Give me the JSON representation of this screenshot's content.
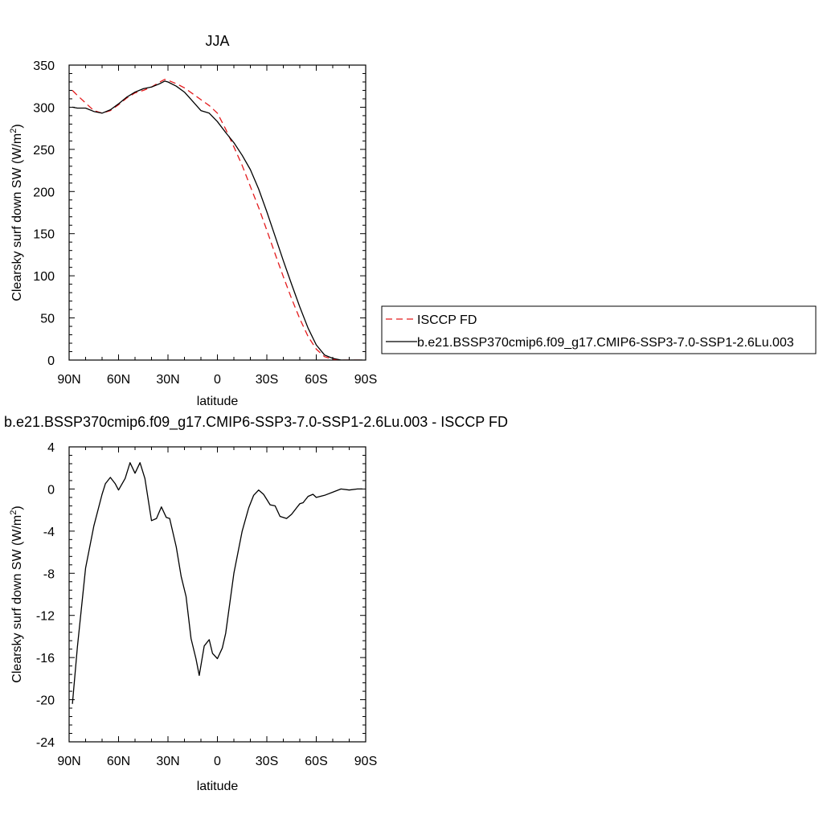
{
  "chart_data": [
    {
      "type": "line",
      "title": "JJA",
      "xlabel": "latitude",
      "ylabel": "Clearsky surf down SW (W/m",
      "ylabel_sup": "2",
      "ylabel_close": ")",
      "xlim": [
        90,
        -90
      ],
      "ylim": [
        0,
        350
      ],
      "x_ticks": [
        90,
        60,
        30,
        0,
        -30,
        -60,
        -90
      ],
      "x_tick_labels": [
        "90N",
        "60N",
        "30N",
        "0",
        "30S",
        "60S",
        "90S"
      ],
      "y_ticks": [
        0,
        50,
        100,
        150,
        200,
        250,
        300,
        350
      ],
      "y_tick_labels": [
        "0",
        "50",
        "100",
        "150",
        "200",
        "250",
        "300",
        "350"
      ],
      "legend_position": "right",
      "series": [
        {
          "name": "ISCCP FD",
          "color": "#e41a1c",
          "dash": "dashed",
          "x": [
            88,
            85,
            80,
            75,
            70,
            65,
            60,
            55,
            50,
            45,
            40,
            35,
            32,
            30,
            25,
            20,
            15,
            10,
            5,
            0,
            -5,
            -10,
            -15,
            -20,
            -25,
            -30,
            -35,
            -40,
            -45,
            -50,
            -55,
            -60,
            -65,
            -70,
            -75,
            -80,
            -85,
            -88
          ],
          "y": [
            320,
            314,
            305,
            296,
            293,
            296,
            303,
            311,
            317,
            320,
            324,
            330,
            333,
            332,
            328,
            323,
            316,
            309,
            302,
            293,
            274,
            253,
            231,
            206,
            181,
            154,
            126,
            99,
            73,
            49,
            28,
            13,
            4,
            1,
            0,
            0,
            0,
            0
          ]
        },
        {
          "name": "b.e21.BSSP370cmip6.f09_g17.CMIP6-SSP3-7.0-SSP1-2.6Lu.003",
          "color": "#000000",
          "dash": "solid",
          "x": [
            88,
            85,
            80,
            75,
            70,
            65,
            60,
            55,
            50,
            45,
            40,
            35,
            32,
            30,
            25,
            20,
            15,
            10,
            5,
            0,
            -5,
            -10,
            -15,
            -20,
            -25,
            -30,
            -35,
            -40,
            -45,
            -50,
            -55,
            -60,
            -65,
            -70,
            -75,
            -80,
            -85,
            -88
          ],
          "y": [
            300,
            299,
            299,
            295,
            293,
            297,
            304,
            312,
            318,
            322,
            324,
            328,
            331,
            330,
            325,
            318,
            307,
            296,
            293,
            283,
            270,
            258,
            243,
            226,
            203,
            176,
            147,
            118,
            90,
            63,
            38,
            18,
            6,
            2,
            0,
            0,
            0,
            0
          ]
        }
      ]
    },
    {
      "type": "line",
      "title": "b.e21.BSSP370cmip6.f09_g17.CMIP6-SSP3-7.0-SSP1-2.6Lu.003 - ISCCP FD",
      "xlabel": "latitude",
      "ylabel": "Clearsky surf down SW (W/m",
      "ylabel_sup": "2",
      "ylabel_close": ")",
      "xlim": [
        90,
        -90
      ],
      "ylim": [
        -24,
        4
      ],
      "x_ticks": [
        90,
        60,
        30,
        0,
        -30,
        -60,
        -90
      ],
      "x_tick_labels": [
        "90N",
        "60N",
        "30N",
        "0",
        "30S",
        "60S",
        "90S"
      ],
      "y_ticks": [
        -24,
        -20,
        -16,
        -12,
        -8,
        -4,
        0,
        4
      ],
      "y_tick_labels": [
        "-24",
        "-20",
        "-16",
        "-12",
        "-8",
        "-4",
        "0",
        "4"
      ],
      "series": [
        {
          "color": "#000000",
          "dash": "solid",
          "x": [
            88,
            85,
            80,
            75,
            70,
            68,
            65,
            62,
            60,
            56,
            53,
            50,
            47,
            44,
            40,
            37,
            34,
            31,
            29,
            25,
            22,
            19,
            16,
            13,
            11,
            8,
            5,
            3,
            0,
            -3,
            -5,
            -10,
            -15,
            -19,
            -22,
            -25,
            -28,
            -30,
            -32,
            -35,
            -38,
            -42,
            -45,
            -48,
            -50,
            -52,
            -55,
            -58,
            -60,
            -65,
            -70,
            -75,
            -80,
            -85,
            -88
          ],
          "y": [
            -20.4,
            -15,
            -7.5,
            -3.5,
            -0.5,
            0.5,
            1.1,
            0.5,
            -0.1,
            1,
            2.5,
            1.5,
            2.5,
            1,
            -3,
            -2.8,
            -1.7,
            -2.7,
            -2.8,
            -5.5,
            -8.3,
            -10.2,
            -14.2,
            -16.1,
            -17.7,
            -14.9,
            -14.3,
            -15.6,
            -16.1,
            -15.1,
            -13.7,
            -8,
            -4,
            -1.8,
            -0.6,
            -0.1,
            -0.5,
            -1,
            -1.5,
            -1.6,
            -2.6,
            -2.8,
            -2.4,
            -1.8,
            -1.4,
            -1.3,
            -0.7,
            -0.5,
            -0.8,
            -0.6,
            -0.3,
            0,
            -0.1,
            0,
            0
          ]
        }
      ]
    }
  ]
}
